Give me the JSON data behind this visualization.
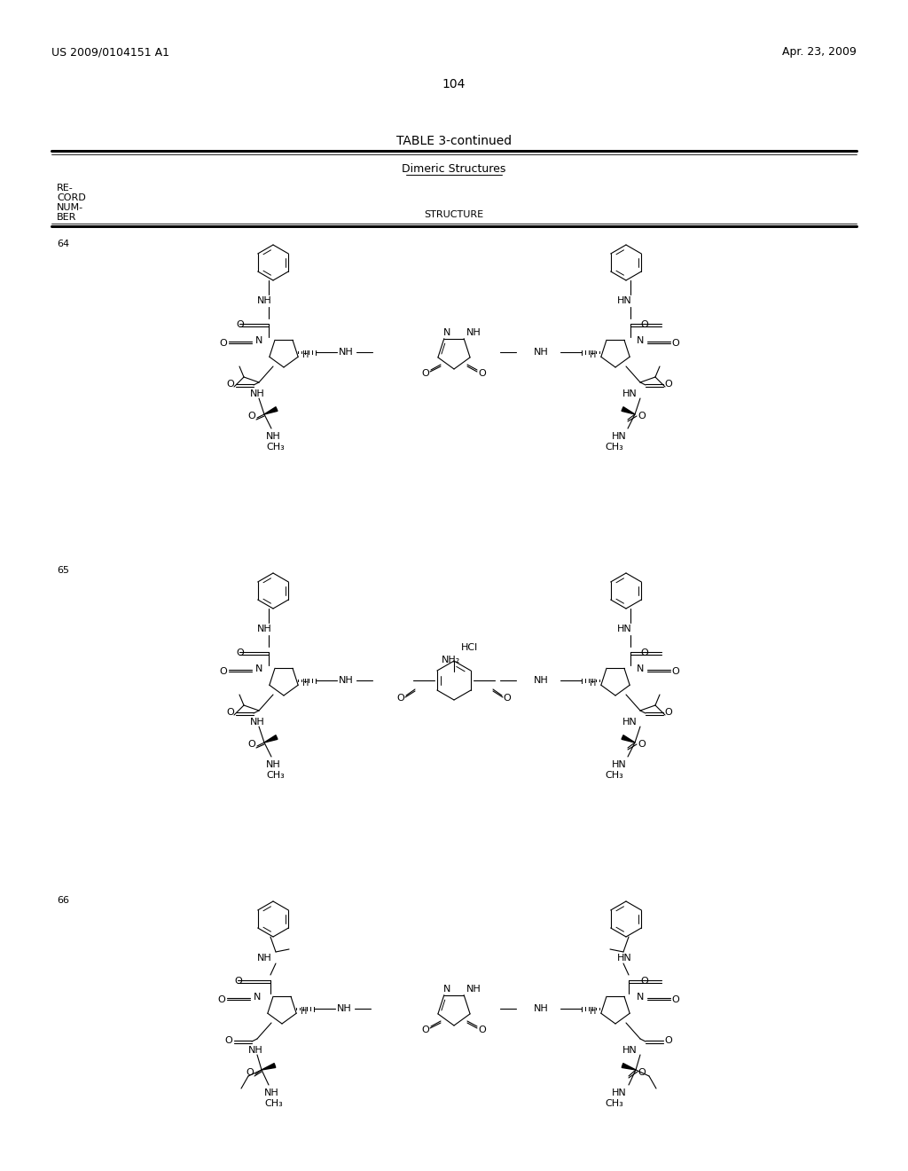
{
  "page_header_left": "US 2009/0104151 A1",
  "page_header_right": "Apr. 23, 2009",
  "page_number": "104",
  "table_title": "TABLE 3-continued",
  "table_subtitle": "Dimeric Structures",
  "col1_header": [
    "RE-",
    "CORD",
    "NUM-",
    "BER"
  ],
  "col2_header": "STRUCTURE",
  "records": [
    "64",
    "65",
    "66"
  ],
  "bg_color": "#ffffff",
  "fg_color": "#000000"
}
